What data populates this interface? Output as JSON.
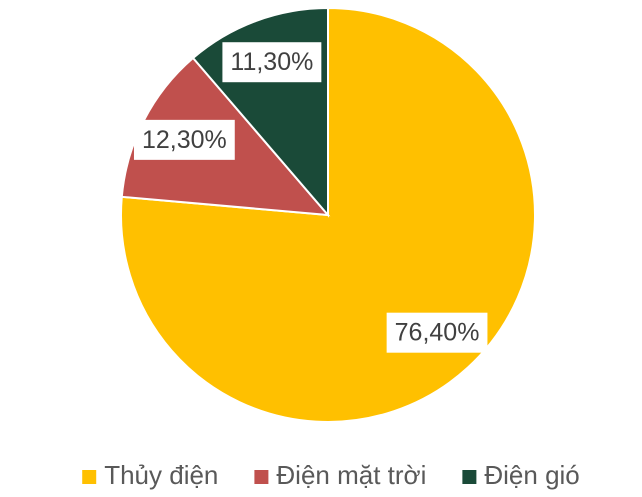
{
  "chart_data": {
    "type": "pie",
    "categories": [
      "Thủy điện",
      "Điện mặt trời",
      "Điện gió"
    ],
    "values": [
      76.4,
      12.3,
      11.3
    ],
    "value_labels": [
      "76,40%",
      "12,30%",
      "11,30%"
    ],
    "colors": [
      "#FFC000",
      "#C0504D",
      "#1A4A38"
    ],
    "legend": "bottom"
  }
}
